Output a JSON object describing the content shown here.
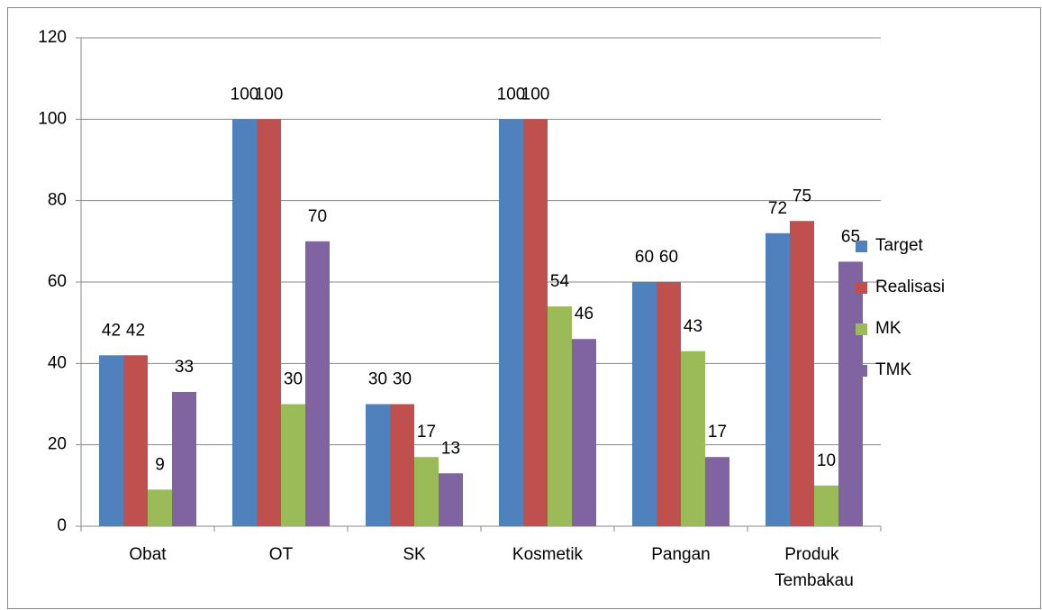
{
  "chart_data": {
    "type": "bar",
    "categories": [
      "Obat",
      "OT",
      "SK",
      "Kosmetik",
      "Pangan",
      "Produk Tembakau"
    ],
    "series": [
      {
        "name": "Target",
        "color": "#4f81bd",
        "values": [
          42,
          100,
          30,
          100,
          60,
          72
        ]
      },
      {
        "name": "Realisasi",
        "color": "#c0504d",
        "values": [
          42,
          100,
          30,
          100,
          60,
          75
        ]
      },
      {
        "name": "MK",
        "color": "#9bbb59",
        "values": [
          9,
          30,
          17,
          54,
          43,
          10
        ]
      },
      {
        "name": "TMK",
        "color": "#8064a2",
        "values": [
          33,
          70,
          13,
          46,
          17,
          65
        ]
      }
    ],
    "ylim": [
      0,
      120
    ],
    "yticks": [
      0,
      20,
      40,
      60,
      80,
      100,
      120
    ],
    "grid": true,
    "legend": "right"
  }
}
